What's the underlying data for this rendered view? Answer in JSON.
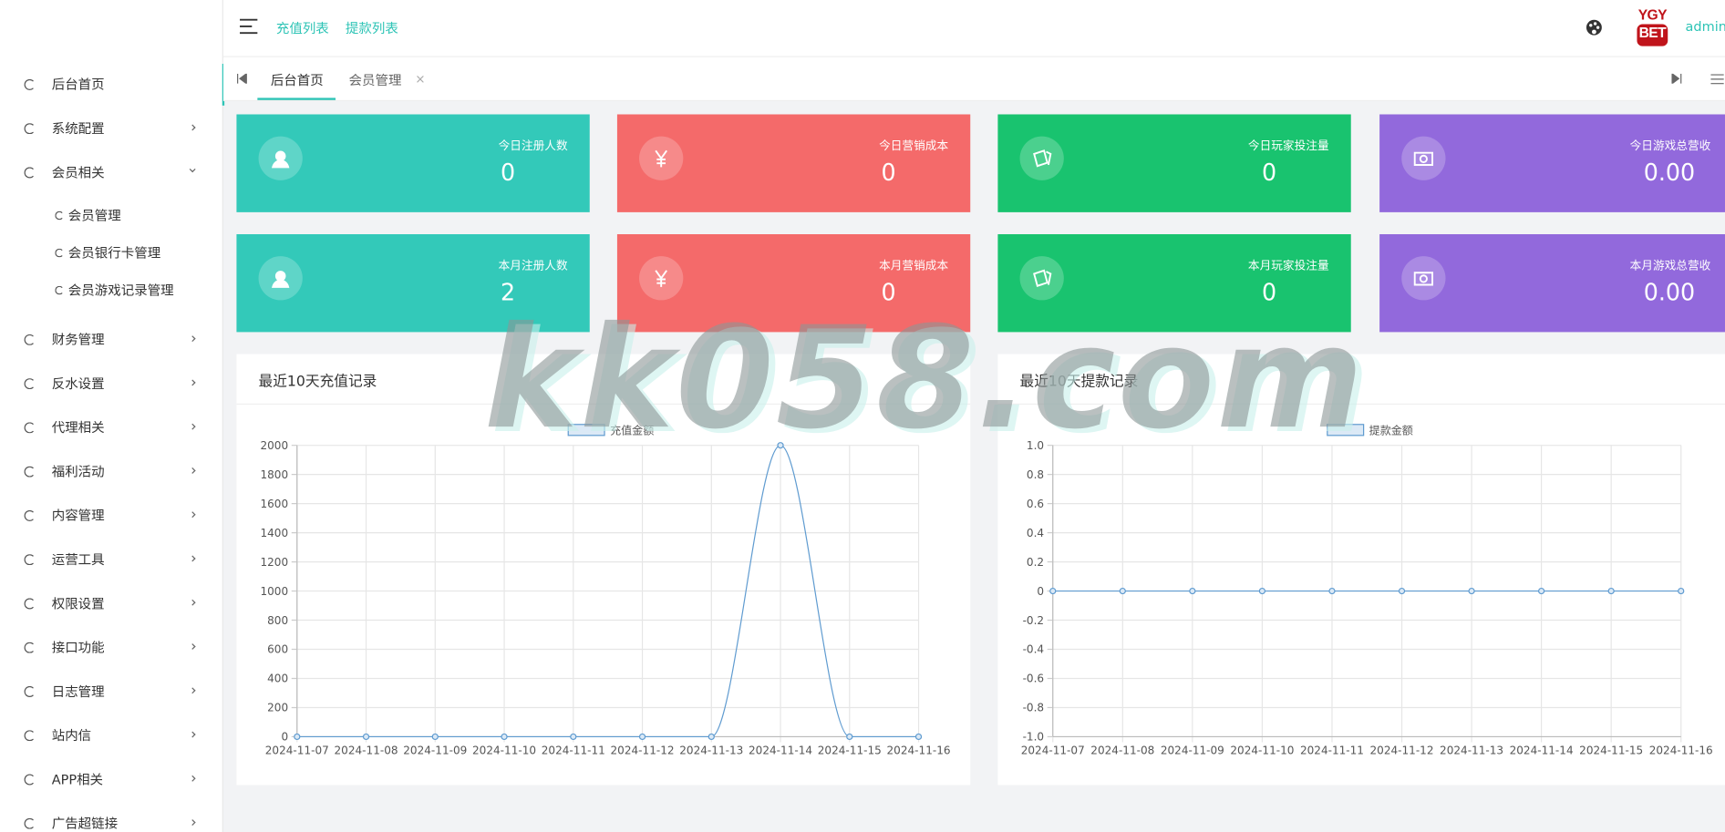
{
  "sidebar": {
    "items": [
      {
        "label": "后台首页"
      },
      {
        "label": "系统配置"
      },
      {
        "label": "会员相关",
        "children": [
          "会员管理",
          "会员银行卡管理",
          "会员游戏记录管理"
        ]
      },
      {
        "label": "财务管理"
      },
      {
        "label": "反水设置"
      },
      {
        "label": "代理相关"
      },
      {
        "label": "福利活动"
      },
      {
        "label": "内容管理"
      },
      {
        "label": "运营工具"
      },
      {
        "label": "权限设置"
      },
      {
        "label": "接口功能"
      },
      {
        "label": "日志管理"
      },
      {
        "label": "站内信"
      },
      {
        "label": "APP相关"
      },
      {
        "label": "广告超链接"
      }
    ]
  },
  "header": {
    "links": [
      "充值列表",
      "提款列表"
    ],
    "logo": [
      "YGY",
      "BET"
    ],
    "user": "admin"
  },
  "tabs": [
    "后台首页",
    "会员管理"
  ],
  "stats": [
    {
      "label": "今日注册人数",
      "value": "0",
      "color": "#33c9b9"
    },
    {
      "label": "今日营销成本",
      "value": "0",
      "color": "#f46a6a"
    },
    {
      "label": "今日玩家投注量",
      "value": "0",
      "color": "#19c36f"
    },
    {
      "label": "今日游戏总营收",
      "value": "0.00",
      "color": "#9269dc"
    },
    {
      "label": "本月注册人数",
      "value": "2",
      "color": "#33c9b9"
    },
    {
      "label": "本月营销成本",
      "value": "0",
      "color": "#f46a6a"
    },
    {
      "label": "本月玩家投注量",
      "value": "0",
      "color": "#19c36f"
    },
    {
      "label": "本月游戏总营收",
      "value": "0.00",
      "color": "#9269dc"
    }
  ],
  "watermark": "kk058.com",
  "chart_data": [
    {
      "type": "line",
      "title": "最近10天充值记录",
      "categories": [
        "2024-11-07",
        "2024-11-08",
        "2024-11-09",
        "2024-11-10",
        "2024-11-11",
        "2024-11-12",
        "2024-11-13",
        "2024-11-14",
        "2024-11-15",
        "2024-11-16"
      ],
      "series": [
        {
          "name": "充值金额",
          "color": "#5f9bd0",
          "values": [
            0,
            0,
            0,
            0,
            0,
            0,
            0,
            2000,
            0,
            0
          ]
        }
      ],
      "ylim": [
        0,
        2000
      ],
      "yticks": [
        0,
        200,
        400,
        600,
        800,
        1000,
        1200,
        1400,
        1600,
        1800,
        2000
      ],
      "grid": true
    },
    {
      "type": "line",
      "title": "最近10天提款记录",
      "categories": [
        "2024-11-07",
        "2024-11-08",
        "2024-11-09",
        "2024-11-10",
        "2024-11-11",
        "2024-11-12",
        "2024-11-13",
        "2024-11-14",
        "2024-11-15",
        "2024-11-16"
      ],
      "series": [
        {
          "name": "提款金额",
          "color": "#5f9bd0",
          "values": [
            0,
            0,
            0,
            0,
            0,
            0,
            0,
            0,
            0,
            0
          ]
        }
      ],
      "ylim": [
        -1,
        1
      ],
      "yticks": [
        {
          "value": -1,
          "label": "-1.0"
        },
        -0.8,
        -0.6,
        -0.4,
        -0.2,
        0,
        0.2,
        0.4,
        0.6,
        0.8,
        {
          "value": 1,
          "label": "1.0"
        }
      ],
      "grid": true
    }
  ]
}
